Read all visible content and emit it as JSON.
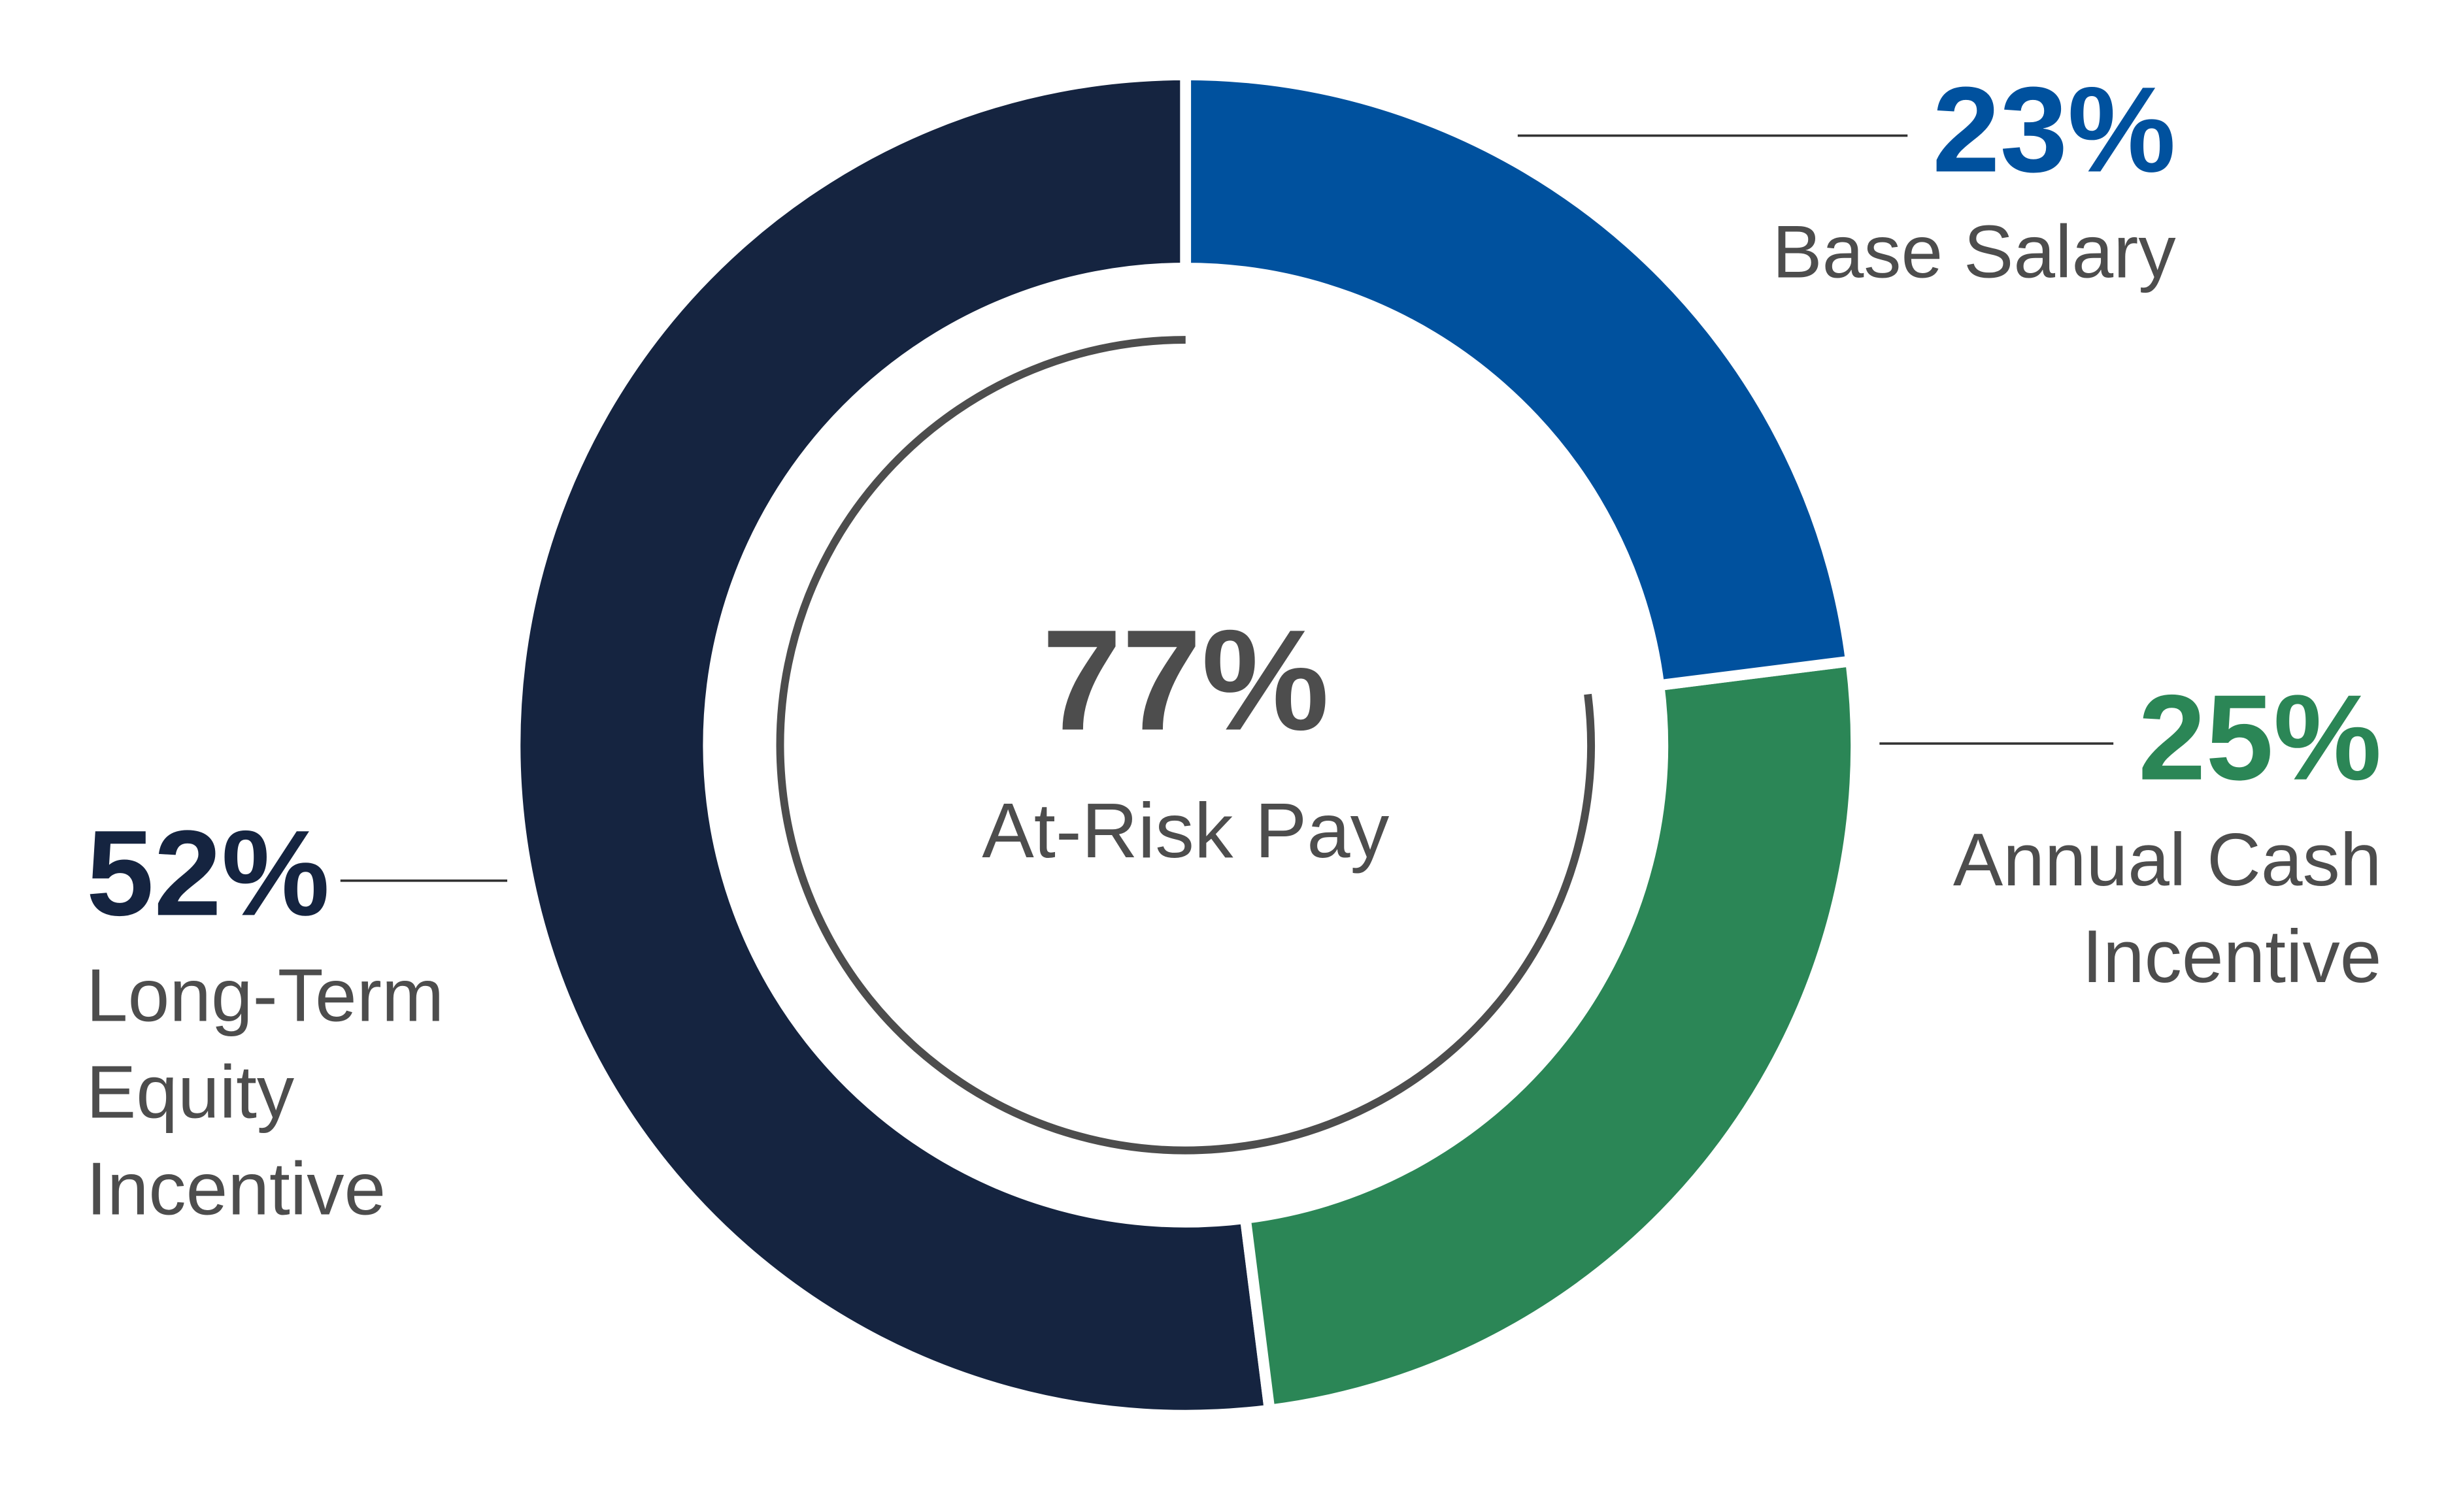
{
  "chart_data": {
    "type": "donut",
    "categories": [
      [
        "Base Salary"
      ],
      [
        "Annual Cash",
        "Incentive"
      ],
      [
        "Long-Term",
        "Equity",
        "Incentive"
      ]
    ],
    "values": [
      23,
      25,
      52
    ],
    "value_labels": [
      "23%",
      "25%",
      "52%"
    ],
    "colors": [
      "#00519e",
      "#2b8656",
      "#152440"
    ],
    "center": {
      "value": 77,
      "label": "77%",
      "text": "At-Risk Pay"
    }
  }
}
